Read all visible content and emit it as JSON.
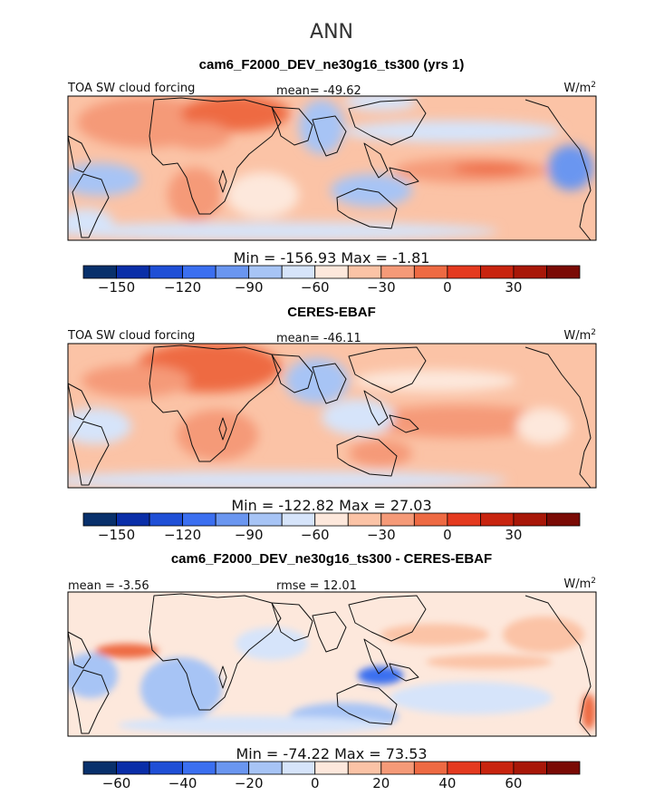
{
  "figure": {
    "season": "ANN",
    "units": "W/m",
    "units_sup": "2"
  },
  "colorbar_colors": [
    "#08306b",
    "#0a2ea8",
    "#1f4fd6",
    "#3b6ff0",
    "#6a96f0",
    "#a7c4f5",
    "#d6e4fa",
    "#fde8dc",
    "#fbc3a6",
    "#f59a78",
    "#ee6a43",
    "#e43a1f",
    "#c8240f",
    "#a81708",
    "#7a0a05"
  ],
  "chart_data": [
    {
      "type": "heatmap",
      "title": "cam6_F2000_DEV_ne30g16_ts300 (yrs 1)",
      "variable": "TOA SW cloud forcing",
      "stat_left": "",
      "stat_mid": "mean=  -49.62",
      "min_max": "Min  =  -156.93  Max  =   -1.81",
      "colorbar_ticks": [
        "-150",
        "-120",
        "-90",
        "-60",
        "-30",
        "0",
        "30"
      ],
      "colorbar_tick_index": [
        1,
        3,
        5,
        7,
        9,
        11,
        13
      ],
      "mean": -49.62,
      "min": -156.93,
      "max": -1.81
    },
    {
      "type": "heatmap",
      "title": "CERES-EBAF",
      "variable": "TOA SW cloud forcing",
      "stat_left": "",
      "stat_mid": "mean=  -46.11",
      "min_max": "Min  =  -122.82  Max  =   27.03",
      "colorbar_ticks": [
        "-150",
        "-120",
        "-90",
        "-60",
        "-30",
        "0",
        "30"
      ],
      "colorbar_tick_index": [
        1,
        3,
        5,
        7,
        9,
        11,
        13
      ],
      "mean": -46.11,
      "min": -122.82,
      "max": 27.03
    },
    {
      "type": "heatmap",
      "title": "cam6_F2000_DEV_ne30g16_ts300 - CERES-EBAF",
      "variable": "",
      "stat_left": "mean  =   -3.56",
      "stat_mid": "rmse  =   12.01",
      "min_max": "Min  =  -74.22  Max  =  73.53",
      "colorbar_ticks": [
        "-60",
        "-40",
        "-20",
        "0",
        "20",
        "40",
        "60"
      ],
      "colorbar_tick_index": [
        1,
        3,
        5,
        7,
        9,
        11,
        13
      ],
      "mean": -3.56,
      "rmse": 12.01,
      "min": -74.22,
      "max": 73.53
    }
  ]
}
